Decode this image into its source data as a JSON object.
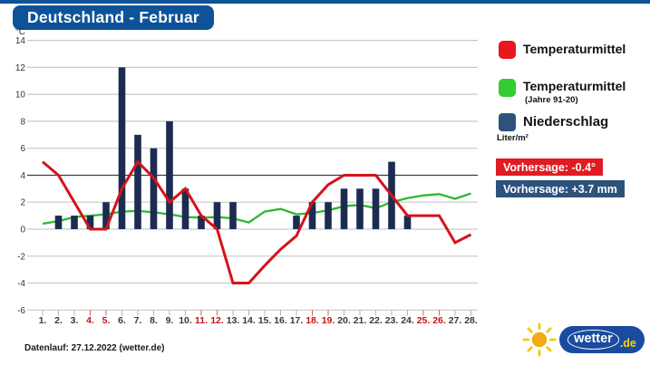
{
  "title": "Deutschland - Februar",
  "chart_data": {
    "type": "combo",
    "title": "Deutschland - Februar",
    "ylabel": "°C",
    "ylim": [
      -6,
      14
    ],
    "y_ticks": [
      14,
      12,
      10,
      8,
      6,
      4,
      2,
      0,
      -2,
      -4,
      -6
    ],
    "dark_gridline_at": 4,
    "grid": true,
    "x_tick_labels": [
      "1.",
      "2.",
      "3.",
      "4.",
      "5.",
      "6.",
      "7.",
      "8.",
      "9.",
      "10.",
      "11.",
      "12.",
      "13.",
      "14.",
      "15.",
      "16.",
      "17.",
      "18.",
      "19.",
      "20.",
      "21.",
      "22.",
      "23.",
      "24.",
      "25.",
      "26.",
      "27.",
      "28."
    ],
    "weekend_days": [
      4,
      5,
      11,
      12,
      18,
      19,
      25,
      26
    ],
    "legend_position": "right",
    "series": [
      {
        "name": "Temperaturmittel",
        "type": "line",
        "unit": "°C",
        "color": "#d6121a",
        "values": [
          5,
          4,
          2,
          0,
          0,
          3,
          5,
          3.8,
          2,
          3,
          1,
          0,
          -4,
          -4,
          -2.7,
          -1.5,
          -0.5,
          2,
          3.3,
          4,
          4,
          4,
          2.5,
          1,
          1,
          1,
          -1,
          -0.4
        ]
      },
      {
        "name": "Temperaturmittel (Jahre 91-20)",
        "type": "line",
        "unit": "°C",
        "color": "#2eb82e",
        "values": [
          0.4,
          0.6,
          0.9,
          1.0,
          1.1,
          1.3,
          1.35,
          1.25,
          1.1,
          0.9,
          0.85,
          0.9,
          0.8,
          0.5,
          1.3,
          1.5,
          1.1,
          1.2,
          1.4,
          1.7,
          1.8,
          1.55,
          2.0,
          2.3,
          2.5,
          2.6,
          2.25,
          2.65
        ]
      },
      {
        "name": "Niederschlag (Liter/m²)",
        "type": "bar",
        "unit": "Liter/m²",
        "color": "#1b2c50",
        "values": [
          0,
          1,
          1,
          1,
          2,
          12,
          7,
          6,
          8,
          3,
          1,
          2,
          2,
          0,
          0,
          0,
          1,
          2,
          2,
          3,
          3,
          3,
          5,
          1,
          0,
          0,
          0,
          0
        ]
      }
    ]
  },
  "legend": {
    "items": [
      {
        "label": "Temperaturmittel",
        "color": "#e8161d"
      },
      {
        "label": "Temperaturmittel",
        "sub": "(Jahre 91-20)",
        "color": "#33cc33"
      },
      {
        "label": "Niederschlag",
        "sub": "Liter/m²",
        "color": "#2d527c"
      }
    ],
    "forecast_temperature": "Vorhersage: -0.4°",
    "forecast_precipitation": "Vorhersage: +3.7 mm"
  },
  "footer": {
    "data_run": "Datenlauf: 27.12.2022 (wetter.de)"
  },
  "logo": {
    "name": "wetter",
    "tld": ".de"
  },
  "colors": {
    "brand_blue": "#0e5397",
    "bar_navy": "#1b2c50",
    "temp_red": "#d6121a",
    "climate_green": "#2eb82e",
    "badge_red": "#e01b22",
    "badge_blue": "#2d527c"
  }
}
